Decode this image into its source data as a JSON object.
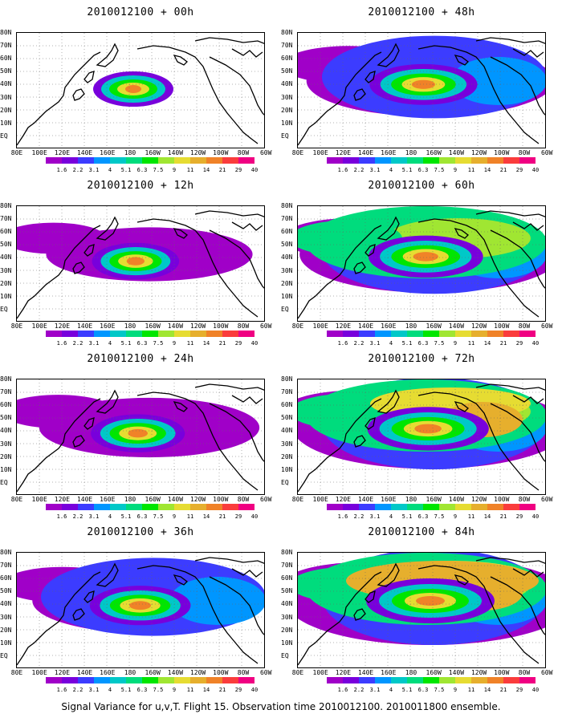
{
  "panels": [
    {
      "title": "2010012100 + 00h",
      "lead": 0
    },
    {
      "title": "2010012100 + 48h",
      "lead": 48
    },
    {
      "title": "2010012100 + 12h",
      "lead": 12
    },
    {
      "title": "2010012100 + 60h",
      "lead": 60
    },
    {
      "title": "2010012100 + 24h",
      "lead": 24
    },
    {
      "title": "2010012100 + 72h",
      "lead": 72
    },
    {
      "title": "2010012100 + 36h",
      "lead": 36
    },
    {
      "title": "2010012100 + 84h",
      "lead": 84
    }
  ],
  "lat_labels": [
    "80N",
    "70N",
    "60N",
    "50N",
    "40N",
    "30N",
    "20N",
    "10N",
    "EQ"
  ],
  "lon_labels": [
    "80E",
    "100E",
    "120E",
    "140E",
    "160E",
    "180",
    "160W",
    "140W",
    "120W",
    "100W",
    "80W",
    "60W"
  ],
  "colorbar": {
    "labels": [
      "1.6",
      "2.2",
      "3.1",
      "4",
      "5.1",
      "6.3",
      "7.5",
      "9",
      "11",
      "14",
      "21",
      "29",
      "40"
    ],
    "colors": [
      "#a000c8",
      "#7800dc",
      "#3c3cff",
      "#0096ff",
      "#00c8c8",
      "#00dc7d",
      "#00e600",
      "#a0e632",
      "#e6dc32",
      "#e6af2d",
      "#f08228",
      "#fa3c3c",
      "#f00082"
    ]
  },
  "footer": "Signal Variance for u,v,T. Flight 15. Observation time 2010012100. 2010011800 ensemble."
}
